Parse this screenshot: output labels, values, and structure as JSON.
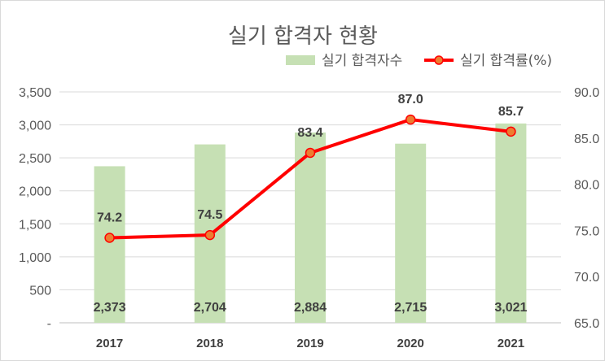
{
  "chart_data": {
    "type": "bar",
    "title": "실기 합격자 현황",
    "categories": [
      "2017",
      "2018",
      "2019",
      "2020",
      "2021"
    ],
    "series": [
      {
        "name": "실기 합격자수",
        "type": "bar",
        "axis": "left",
        "values": [
          2373,
          2704,
          2884,
          2715,
          3021
        ],
        "labels": [
          "2,373",
          "2,704",
          "2,884",
          "2,715",
          "3,021"
        ],
        "color": "#c6e0b4"
      },
      {
        "name": "실기 합격률(%)",
        "type": "line",
        "axis": "right",
        "values": [
          74.2,
          74.5,
          83.4,
          87.0,
          85.7
        ],
        "labels": [
          "74.2",
          "74.5",
          "83.4",
          "87.0",
          "85.7"
        ],
        "color": "#ff0000",
        "marker_fill": "#ed7d31"
      }
    ],
    "y_left": {
      "ylim": [
        0,
        3500
      ],
      "ticks": [
        0,
        500,
        1000,
        1500,
        2000,
        2500,
        3000,
        3500
      ],
      "tick_labels": [
        "-",
        "500",
        "1,000",
        "1,500",
        "2,000",
        "2,500",
        "3,000",
        "3,500"
      ]
    },
    "y_right": {
      "ylim": [
        65,
        90
      ],
      "ticks": [
        65,
        70,
        75,
        80,
        85,
        90
      ],
      "tick_labels": [
        "65.0",
        "70.0",
        "75.0",
        "80.0",
        "85.0",
        "90.0"
      ]
    },
    "grid": true,
    "legend": "top-right"
  }
}
